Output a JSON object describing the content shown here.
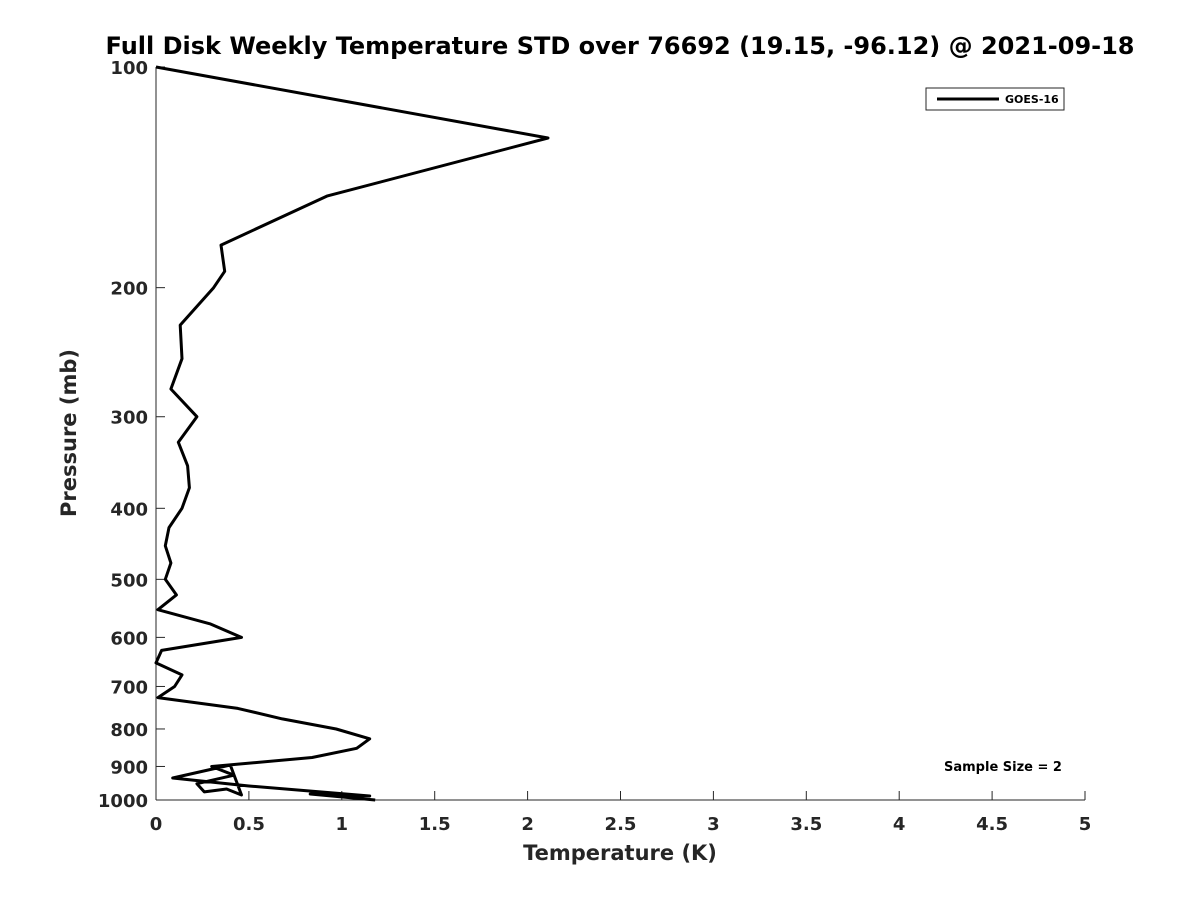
{
  "chart_data": {
    "type": "line",
    "title": "Full Disk Weekly Temperature STD over 76692 (19.15, -96.12) @ 2021-09-18",
    "xlabel": "Temperature (K)",
    "ylabel": "Pressure (mb)",
    "xlim": [
      0,
      5
    ],
    "ylim": [
      100,
      1000
    ],
    "y_scale": "log",
    "y_reversed": true,
    "x_ticks": [
      "0",
      "0.5",
      "1",
      "1.5",
      "2",
      "2.5",
      "3",
      "3.5",
      "4",
      "4.5",
      "5"
    ],
    "y_ticks": [
      "100",
      "200",
      "300",
      "400",
      "500",
      "600",
      "700",
      "800",
      "900",
      "1000"
    ],
    "grid": false,
    "legend": {
      "placement": "top-right",
      "entries": [
        "GOES-16"
      ]
    },
    "annotation": "Sample Size = 2",
    "series": [
      {
        "name": "GOES-16",
        "color": "#000000",
        "x": [
          0.0,
          2.11,
          0.92,
          0.35,
          0.37,
          0.31,
          0.13,
          0.14,
          0.08,
          0.22,
          0.12,
          0.17,
          0.18,
          0.14,
          0.07,
          0.05,
          0.08,
          0.05,
          0.11,
          0.01,
          0.29,
          0.46,
          0.03,
          0.0,
          0.14,
          0.1,
          0.01,
          0.44,
          0.68,
          0.97,
          1.15,
          1.08,
          0.84,
          0.3,
          0.42,
          0.22,
          0.26,
          0.38,
          0.46,
          0.4,
          0.09,
          0.5,
          1.15,
          0.83,
          1.18
        ],
        "y": [
          100,
          125,
          150,
          175,
          190,
          200,
          225,
          250,
          275,
          300,
          325,
          350,
          375,
          400,
          425,
          450,
          475,
          500,
          525,
          550,
          575,
          600,
          625,
          650,
          675,
          700,
          725,
          750,
          775,
          800,
          825,
          850,
          875,
          900,
          925,
          950,
          975,
          1000,
          1000,
          1000,
          1000,
          1000,
          1000,
          1000,
          1000
        ]
      }
    ]
  }
}
